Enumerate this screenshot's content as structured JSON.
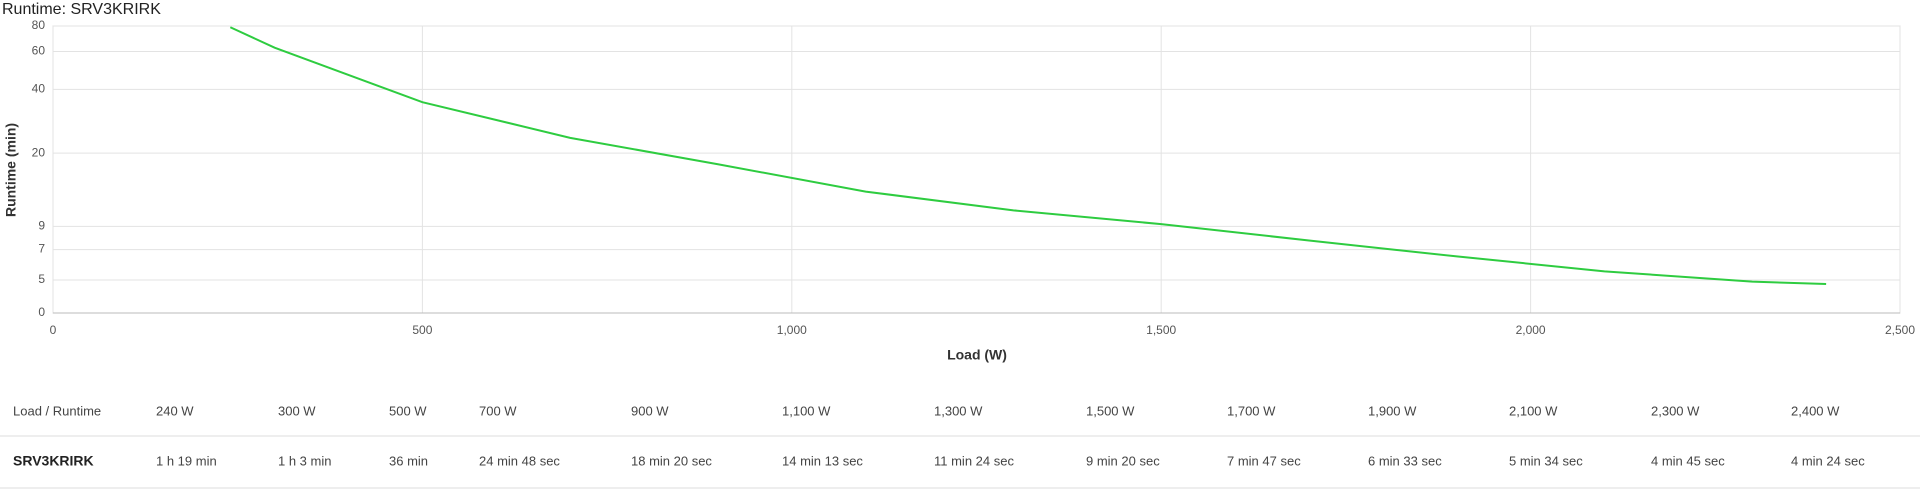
{
  "chart_data": {
    "type": "line",
    "title": "Runtime: SRV3KRIRK",
    "x_label": "Load (W)",
    "y_label": "Runtime (min)",
    "x": [
      240,
      300,
      500,
      700,
      900,
      1100,
      1300,
      1500,
      1700,
      1900,
      2100,
      2300,
      2400
    ],
    "values": [
      79,
      63,
      36,
      24.8,
      18.33,
      14.22,
      11.4,
      9.33,
      7.78,
      6.55,
      5.57,
      4.75,
      4.4
    ],
    "color": "#2ecc40",
    "xlim": [
      0,
      2500
    ],
    "xticks": [
      0,
      500,
      {
        "value": 1000,
        "label": "1,000"
      },
      {
        "value": 1500,
        "label": "1,500"
      },
      {
        "value": 2000,
        "label": "2,000"
      },
      {
        "value": 2500,
        "label": "2,500"
      }
    ],
    "ylim": [
      0,
      80
    ],
    "yticks": [
      0,
      5,
      7,
      9,
      20,
      40,
      60,
      80
    ],
    "grid": true
  },
  "table": {
    "header": [
      "Load / Runtime",
      "240 W",
      "300 W",
      "500 W",
      "700 W",
      "900 W",
      "1,100 W",
      "1,300 W",
      "1,500 W",
      "1,700 W",
      "1,900 W",
      "2,100 W",
      "2,300 W",
      "2,400 W"
    ],
    "rows": [
      [
        "SRV3KRIRK",
        "1 h 19 min",
        "1 h 3 min",
        "36 min",
        "24 min 48 sec",
        "18 min 20 sec",
        "14 min 13 sec",
        "11 min 24 sec",
        "9 min 20 sec",
        "7 min 47 sec",
        "6 min 33 sec",
        "5 min 34 sec",
        "4 min 45 sec",
        "4 min 24 sec"
      ]
    ]
  }
}
